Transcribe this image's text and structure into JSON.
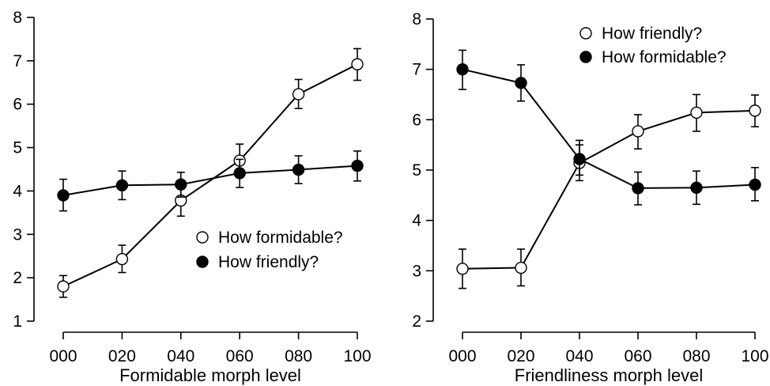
{
  "chart_data": [
    {
      "type": "line",
      "xlabel": "Formidable morph level",
      "ylabel": "",
      "categories": [
        "000",
        "020",
        "040",
        "060",
        "080",
        "100"
      ],
      "ylim": [
        1,
        8
      ],
      "yticks": [
        1,
        2,
        3,
        4,
        5,
        6,
        7,
        8
      ],
      "legend": "center-right",
      "grid": false,
      "series": [
        {
          "name": "How formidable?",
          "marker": "open-circle",
          "values": [
            1.8,
            2.43,
            3.78,
            4.7,
            6.23,
            6.92
          ],
          "err_low": [
            1.55,
            2.12,
            3.42,
            4.32,
            5.9,
            6.55
          ],
          "err_high": [
            2.05,
            2.75,
            4.12,
            5.08,
            6.57,
            7.28
          ]
        },
        {
          "name": "How friendly?",
          "marker": "filled-circle",
          "values": [
            3.9,
            4.13,
            4.15,
            4.41,
            4.49,
            4.58
          ],
          "err_low": [
            3.54,
            3.8,
            3.86,
            4.08,
            4.17,
            4.23
          ],
          "err_high": [
            4.27,
            4.46,
            4.43,
            4.73,
            4.81,
            4.92
          ]
        }
      ]
    },
    {
      "type": "line",
      "xlabel": "Friendliness morph level",
      "ylabel": "",
      "categories": [
        "000",
        "020",
        "040",
        "060",
        "080",
        "100"
      ],
      "ylim": [
        2,
        8
      ],
      "yticks": [
        2,
        3,
        4,
        5,
        6,
        7,
        8
      ],
      "legend": "top-right",
      "grid": false,
      "series": [
        {
          "name": "How friendly?",
          "marker": "open-circle",
          "values": [
            3.04,
            3.06,
            5.14,
            5.77,
            6.14,
            6.18
          ],
          "err_low": [
            2.65,
            2.7,
            4.79,
            5.42,
            5.77,
            5.86
          ],
          "err_high": [
            3.43,
            3.43,
            5.5,
            6.1,
            6.5,
            6.49
          ]
        },
        {
          "name": "How formidable?",
          "marker": "filled-circle",
          "values": [
            7.0,
            6.73,
            5.22,
            4.64,
            4.65,
            4.71
          ],
          "err_low": [
            6.6,
            6.37,
            4.9,
            4.31,
            4.32,
            4.39
          ],
          "err_high": [
            7.38,
            7.09,
            5.59,
            4.96,
            4.98,
            5.05
          ]
        }
      ]
    }
  ]
}
